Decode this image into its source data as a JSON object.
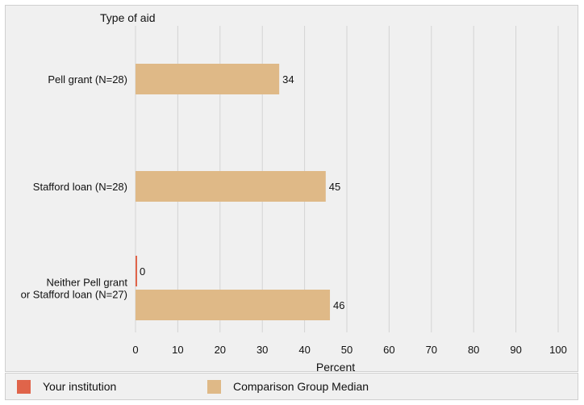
{
  "chart_data": {
    "type": "bar",
    "orientation": "horizontal",
    "title": "Type of aid",
    "xlabel": "Percent",
    "xlim": [
      0,
      100
    ],
    "xticks": [
      "0",
      "10",
      "20",
      "30",
      "40",
      "50",
      "60",
      "70",
      "80",
      "90",
      "100"
    ],
    "grid": true,
    "categories": [
      [
        "Pell grant  (N=28)"
      ],
      [
        "Stafford loan (N=28)"
      ],
      [
        "Neither Pell grant",
        "or Stafford loan (N=27)"
      ]
    ],
    "series": [
      {
        "name": "Your institution",
        "color": "#e0644a",
        "values": [
          null,
          null,
          0
        ],
        "labels": [
          "",
          "",
          "0"
        ]
      },
      {
        "name": "Comparison Group Median",
        "color": "#dfb987",
        "values": [
          34,
          45,
          46
        ],
        "labels": [
          "34",
          "45",
          "46"
        ]
      }
    ]
  },
  "legend": {
    "items": [
      {
        "label": "Your institution",
        "color": "#e0644a"
      },
      {
        "label": "Comparison Group Median",
        "color": "#dfb987"
      }
    ]
  }
}
